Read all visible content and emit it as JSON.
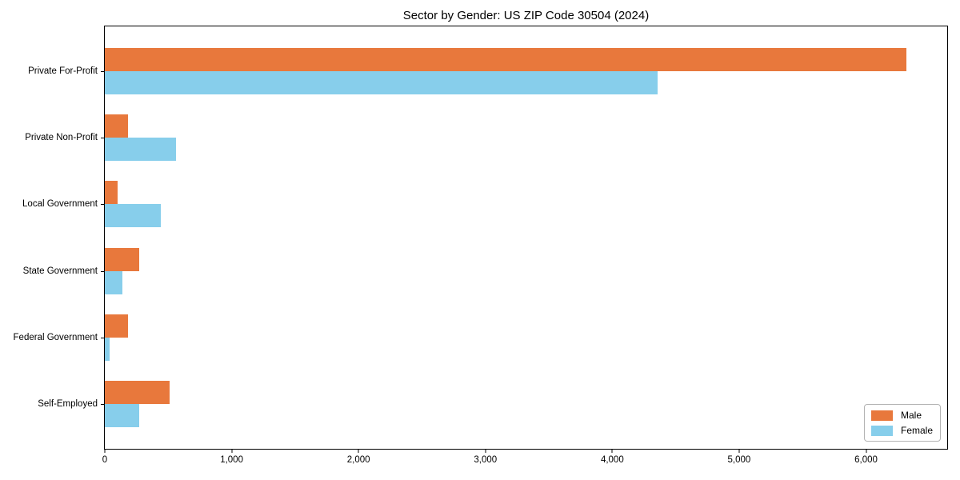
{
  "title": "Sector by Gender: US ZIP Code 30504 (2024)",
  "colors": {
    "male": "#e8783c",
    "female": "#87ceeb",
    "axis": "#000000",
    "legend_border": "#b3b3b3",
    "background": "#ffffff"
  },
  "chart_data": {
    "type": "bar",
    "orientation": "horizontal",
    "title": "Sector by Gender: US ZIP Code 30504 (2024)",
    "xlabel": "",
    "ylabel": "",
    "categories": [
      "Private For-Profit",
      "Private Non-Profit",
      "Local Government",
      "State Government",
      "Federal Government",
      "Self-Employed"
    ],
    "series": [
      {
        "name": "Male",
        "color": "#e8783c",
        "values": [
          6320,
          180,
          100,
          270,
          185,
          510
        ]
      },
      {
        "name": "Female",
        "color": "#87ceeb",
        "values": [
          4360,
          560,
          440,
          140,
          35,
          270
        ]
      }
    ],
    "xlim": [
      0,
      6640
    ],
    "xticks": [
      0,
      1000,
      2000,
      3000,
      4000,
      5000,
      6000
    ],
    "xtick_labels": [
      "0",
      "1,000",
      "2,000",
      "3,000",
      "4,000",
      "5,000",
      "6,000"
    ],
    "grid": false,
    "legend": {
      "position": "lower right",
      "entries": [
        "Male",
        "Female"
      ]
    }
  }
}
